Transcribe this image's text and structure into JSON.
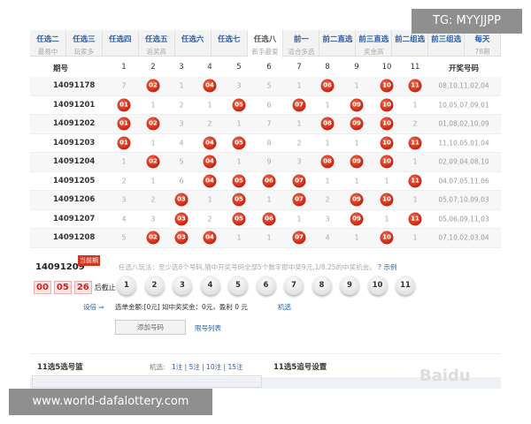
{
  "tabs": [
    {
      "title": "任选二",
      "sub": "最易中"
    },
    {
      "title": "任选三",
      "sub": "玩家多"
    },
    {
      "title": "任选四",
      "sub": ""
    },
    {
      "title": "任选五",
      "sub": "返奖高"
    },
    {
      "title": "任选六",
      "sub": ""
    },
    {
      "title": "任选七",
      "sub": ""
    },
    {
      "title": "任选八",
      "sub": "新手最爱",
      "active": true
    },
    {
      "title": "前一",
      "sub": "适合多选"
    },
    {
      "title": "前二直选",
      "sub": ""
    },
    {
      "title": "前三直选",
      "sub": "奖金高"
    },
    {
      "title": "前二组选",
      "sub": ""
    },
    {
      "title": "前三组选",
      "sub": ""
    },
    {
      "title": "每天",
      "sub": "78期"
    }
  ],
  "table": {
    "period_header": "期号",
    "columns": [
      "1",
      "2",
      "3",
      "4",
      "5",
      "6",
      "7",
      "8",
      "9",
      "10",
      "11"
    ],
    "draw_header": "开奖号码",
    "rows": [
      {
        "period": "14091178",
        "cells": [
          "7",
          "02",
          "1",
          "04",
          "3",
          "5",
          "1",
          "08",
          "1",
          "10",
          "11"
        ],
        "draw": "08,10,11,02,04"
      },
      {
        "period": "14091201",
        "cells": [
          "01",
          "1",
          "2",
          "1",
          "05",
          "6",
          "07",
          "1",
          "09",
          "10",
          "1"
        ],
        "draw": "10,05,07,09,01"
      },
      {
        "period": "14091202",
        "cells": [
          "01",
          "02",
          "3",
          "2",
          "1",
          "7",
          "1",
          "08",
          "09",
          "10",
          "2"
        ],
        "draw": "01,08,02,10,09"
      },
      {
        "period": "14091203",
        "cells": [
          "01",
          "1",
          "4",
          "04",
          "05",
          "8",
          "2",
          "1",
          "1",
          "10",
          "11"
        ],
        "draw": "11,10,05,01,04"
      },
      {
        "period": "14091204",
        "cells": [
          "1",
          "02",
          "5",
          "04",
          "1",
          "9",
          "3",
          "08",
          "09",
          "10",
          "1"
        ],
        "draw": "02,09,04,08,10"
      },
      {
        "period": "14091205",
        "cells": [
          "2",
          "1",
          "6",
          "04",
          "05",
          "06",
          "07",
          "1",
          "1",
          "1",
          "11"
        ],
        "draw": "04,07,05,11,06"
      },
      {
        "period": "14091206",
        "cells": [
          "3",
          "2",
          "03",
          "1",
          "05",
          "1",
          "07",
          "2",
          "09",
          "10",
          "1"
        ],
        "draw": "05,07,10,09,03"
      },
      {
        "period": "14091207",
        "cells": [
          "4",
          "3",
          "03",
          "2",
          "05",
          "06",
          "1",
          "3",
          "09",
          "1",
          "11"
        ],
        "draw": "05,06,09,11,03"
      },
      {
        "period": "14091208",
        "cells": [
          "5",
          "02",
          "03",
          "04",
          "1",
          "1",
          "07",
          "4",
          "1",
          "10",
          "1"
        ],
        "draw": "07,10,02,03,04"
      }
    ]
  },
  "bet": {
    "period": "14091209",
    "current_badge": "当前期",
    "countdown": {
      "h": "00",
      "m": "05",
      "s": "26",
      "suffix": "后截止"
    },
    "rule": "任选八玩法：至少选8个号码,猜中开奖号码全部5个数字即中奖9元,1/8.25的中奖机会。",
    "example": "? 示例",
    "numbers": [
      "1",
      "2",
      "3",
      "4",
      "5",
      "6",
      "7",
      "8",
      "9",
      "10",
      "11"
    ],
    "set_bet": "设倍 ⇒",
    "summary": "选单金额:[0元] 如中奖奖金：0元，盈利 0 元",
    "random": "机选",
    "add_button": "添加号码",
    "list_link": "限号列表"
  },
  "footer": {
    "basket_title": "11选5选号篮",
    "random_label": "机选:",
    "random_options": "1注 | 5注 | 10注 | 15注",
    "chase_title": "11选5追号设置"
  },
  "watermarks": {
    "top": "TG: MYYJJPP",
    "bottom": "www.world-dafalottery.com",
    "logo": "Bai du 经验"
  },
  "colors": {
    "ball": "#c8230f",
    "link": "#2b5fa8"
  }
}
